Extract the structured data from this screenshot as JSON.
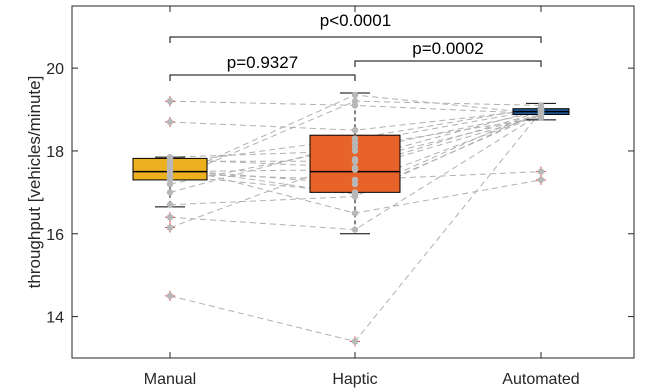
{
  "chart_data": {
    "type": "box",
    "ylabel": "throughput [vehicles/minute]",
    "ylim": [
      13,
      21.5
    ],
    "yticks": [
      14,
      16,
      18,
      20
    ],
    "categories": [
      "Manual",
      "Haptic",
      "Automated"
    ],
    "colors": {
      "Manual": "#EDB120",
      "Haptic": "#E8632A",
      "Automated": "#1F5C99",
      "points": "#B7B7B7",
      "lines": "#B0B0B0",
      "outlier": "#D9434B"
    },
    "boxes": [
      {
        "category": "Manual",
        "q1": 17.3,
        "median": 17.5,
        "q3": 17.82,
        "whisker_low": 16.65,
        "whisker_high": 17.85,
        "outliers": [
          19.2,
          18.7,
          16.4,
          16.15,
          14.5
        ]
      },
      {
        "category": "Haptic",
        "q1": 17.0,
        "median": 17.5,
        "q3": 18.38,
        "whisker_low": 16.0,
        "whisker_high": 19.4,
        "outliers": [
          13.4
        ]
      },
      {
        "category": "Automated",
        "q1": 18.88,
        "median": 18.95,
        "q3": 19.02,
        "whisker_low": 18.75,
        "whisker_high": 19.15,
        "outliers": [
          17.5,
          17.3
        ]
      }
    ],
    "paired_series": [
      [
        19.2,
        19.1,
        18.9
      ],
      [
        18.7,
        18.5,
        19.0
      ],
      [
        17.85,
        18.0,
        18.95
      ],
      [
        17.8,
        17.6,
        18.95
      ],
      [
        17.7,
        18.3,
        19.05
      ],
      [
        17.6,
        16.95,
        18.9
      ],
      [
        17.55,
        17.2,
        18.9
      ],
      [
        17.5,
        17.55,
        18.85
      ],
      [
        17.45,
        17.3,
        17.5
      ],
      [
        17.4,
        17.0,
        19.0
      ],
      [
        17.3,
        19.2,
        19.1
      ],
      [
        17.2,
        18.1,
        18.8
      ],
      [
        17.0,
        18.2,
        19.0
      ],
      [
        16.7,
        16.9,
        18.95
      ],
      [
        16.4,
        16.1,
        18.9
      ],
      [
        16.15,
        17.8,
        19.0
      ],
      [
        14.5,
        13.4,
        18.95
      ],
      [
        17.35,
        19.35,
        18.9
      ],
      [
        17.65,
        16.5,
        17.3
      ],
      [
        17.75,
        17.75,
        18.85
      ]
    ],
    "comparisons": [
      {
        "from": "Manual",
        "to": "Haptic",
        "label": "p=0.9327"
      },
      {
        "from": "Haptic",
        "to": "Automated",
        "label": "p=0.0002"
      },
      {
        "from": "Manual",
        "to": "Automated",
        "label": "p<0.0001"
      }
    ],
    "grid": false,
    "legend": "none"
  }
}
